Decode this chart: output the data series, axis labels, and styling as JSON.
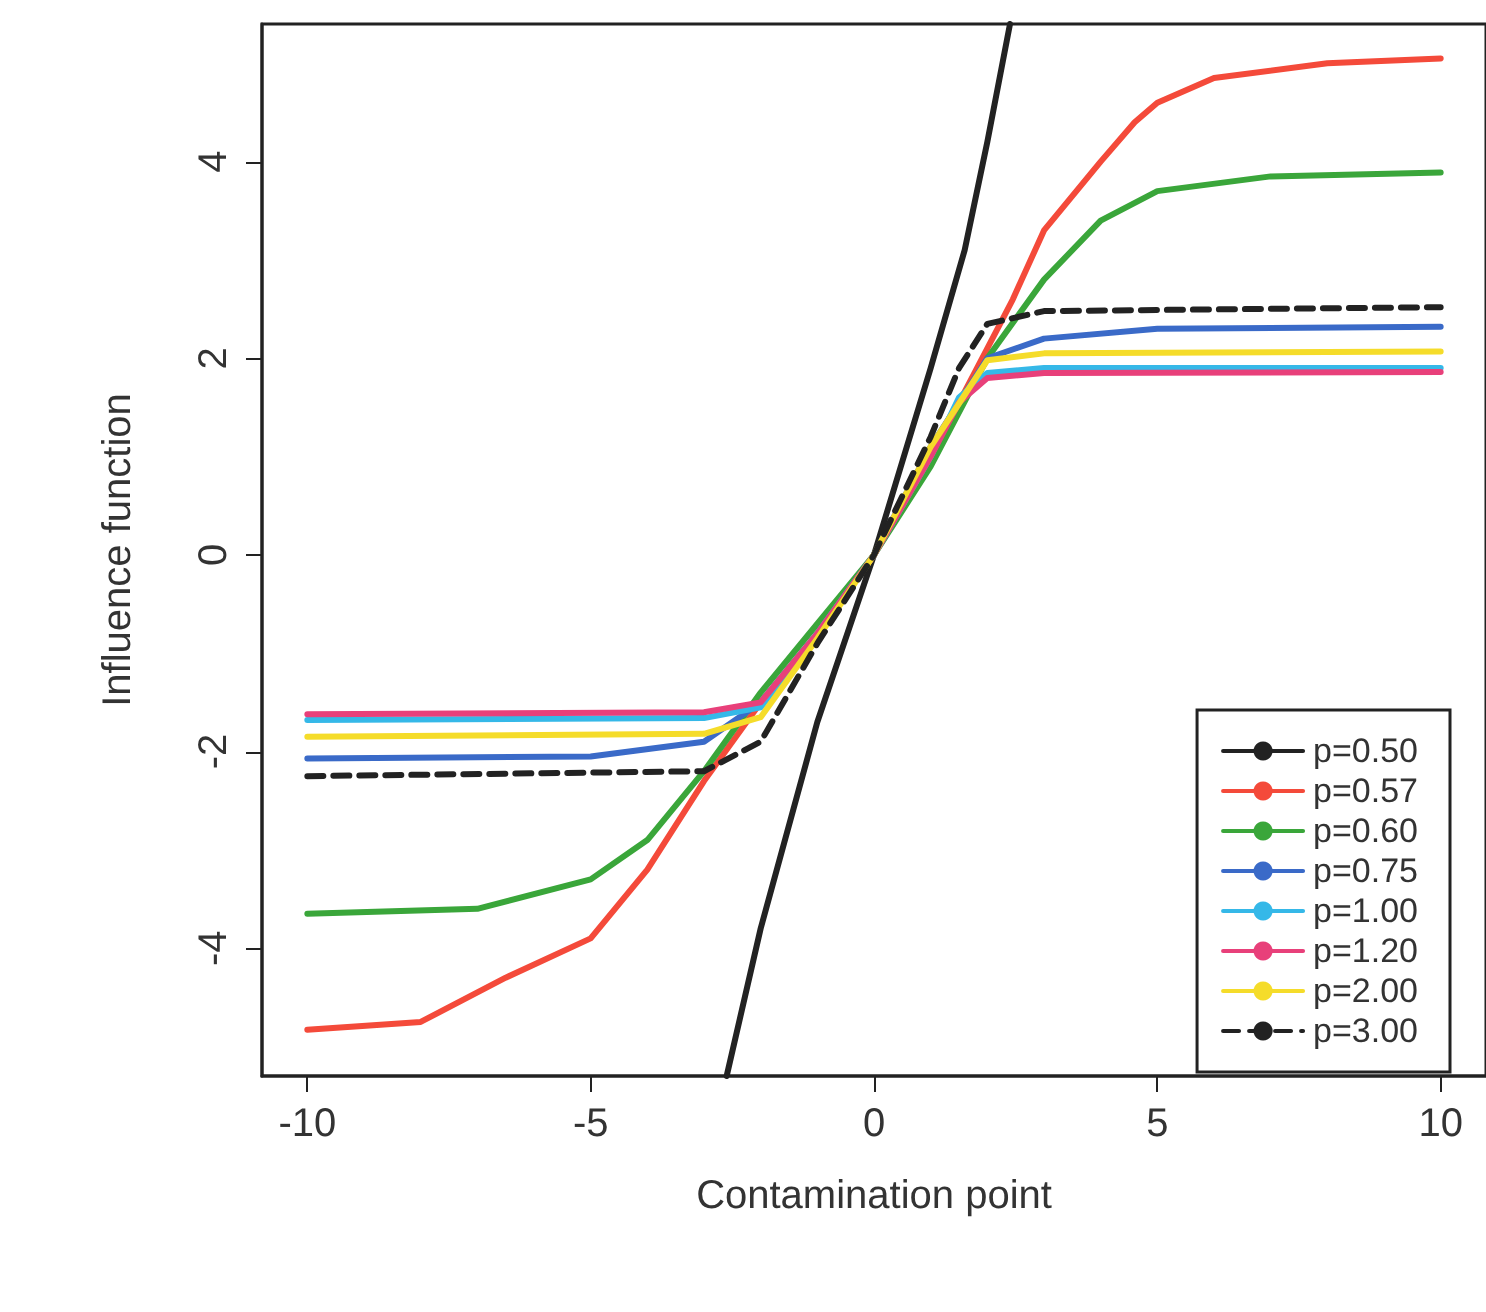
{
  "chart_data": {
    "type": "line",
    "xlabel": "Contamination point",
    "ylabel": "Influence function",
    "xlim": [
      -10.8,
      10.8
    ],
    "ylim": [
      -5.3,
      5.4
    ],
    "xticks": [
      -10,
      -5,
      0,
      5,
      10
    ],
    "yticks": [
      -4,
      -2,
      0,
      2,
      4
    ],
    "grid": false,
    "legend": "bottom right",
    "marker": "none",
    "line_style": "solid",
    "series": [
      {
        "name": "p=0.50",
        "color": "#222222",
        "x": [
          -2.6,
          -2,
          -1,
          0,
          1,
          1.6,
          2,
          2.4
        ],
        "values": [
          -5.3,
          -3.8,
          -1.7,
          0,
          1.9,
          3.1,
          4.2,
          5.4
        ]
      },
      {
        "name": "p=0.57",
        "color": "#f44a3a",
        "x": [
          -10,
          -8,
          -6.5,
          -5,
          -4,
          -3,
          -2,
          -1,
          0,
          1,
          2,
          2.45,
          3,
          4,
          4.6,
          5,
          6,
          8,
          10
        ],
        "values": [
          -4.83,
          -4.75,
          -4.3,
          -3.9,
          -3.2,
          -2.3,
          -1.5,
          -0.8,
          0,
          1,
          2.1,
          2.6,
          3.3,
          4,
          4.4,
          4.6,
          4.85,
          5,
          5.05
        ]
      },
      {
        "name": "p=0.60",
        "color": "#3aa63a",
        "x": [
          -10,
          -7,
          -5,
          -4,
          -3,
          -2,
          -1,
          0,
          1,
          2,
          3,
          4,
          5,
          7,
          10
        ],
        "values": [
          -3.65,
          -3.6,
          -3.3,
          -2.9,
          -2.2,
          -1.4,
          -0.7,
          0,
          0.9,
          2,
          2.8,
          3.4,
          3.7,
          3.85,
          3.89
        ]
      },
      {
        "name": "p=0.75",
        "color": "#3a6ac8",
        "x": [
          -10,
          -5,
          -3,
          -2,
          -1,
          0,
          1,
          2,
          3,
          5,
          10
        ],
        "values": [
          -2.07,
          -2.05,
          -1.9,
          -1.5,
          -0.8,
          0,
          1.1,
          2,
          2.2,
          2.3,
          2.32
        ]
      },
      {
        "name": "p=1.00",
        "color": "#35b8e8",
        "x": [
          -10,
          -3,
          -2,
          -1,
          0,
          1,
          1.5,
          2,
          3,
          10
        ],
        "values": [
          -1.68,
          -1.66,
          -1.55,
          -0.8,
          0,
          1,
          1.6,
          1.85,
          1.9,
          1.9
        ]
      },
      {
        "name": "p=1.20",
        "color": "#e8407a",
        "x": [
          -10,
          -3,
          -2,
          -1,
          0,
          1,
          1.5,
          2,
          3,
          10
        ],
        "values": [
          -1.62,
          -1.6,
          -1.5,
          -0.8,
          0,
          1,
          1.55,
          1.8,
          1.85,
          1.86
        ]
      },
      {
        "name": "p=2.00",
        "color": "#f5dc2a",
        "x": [
          -10,
          -3,
          -2,
          -1,
          0,
          1,
          2,
          3,
          10
        ],
        "values": [
          -1.85,
          -1.82,
          -1.65,
          -0.85,
          0,
          1.1,
          1.98,
          2.05,
          2.07
        ]
      },
      {
        "name": "p=3.00",
        "color": "#222222",
        "line_style": "dashed",
        "x": [
          -10,
          -3,
          -2,
          -1,
          0,
          1,
          1.5,
          2,
          3,
          10
        ],
        "values": [
          -2.25,
          -2.2,
          -1.9,
          -0.9,
          0,
          1.2,
          1.9,
          2.35,
          2.48,
          2.52
        ]
      }
    ]
  }
}
